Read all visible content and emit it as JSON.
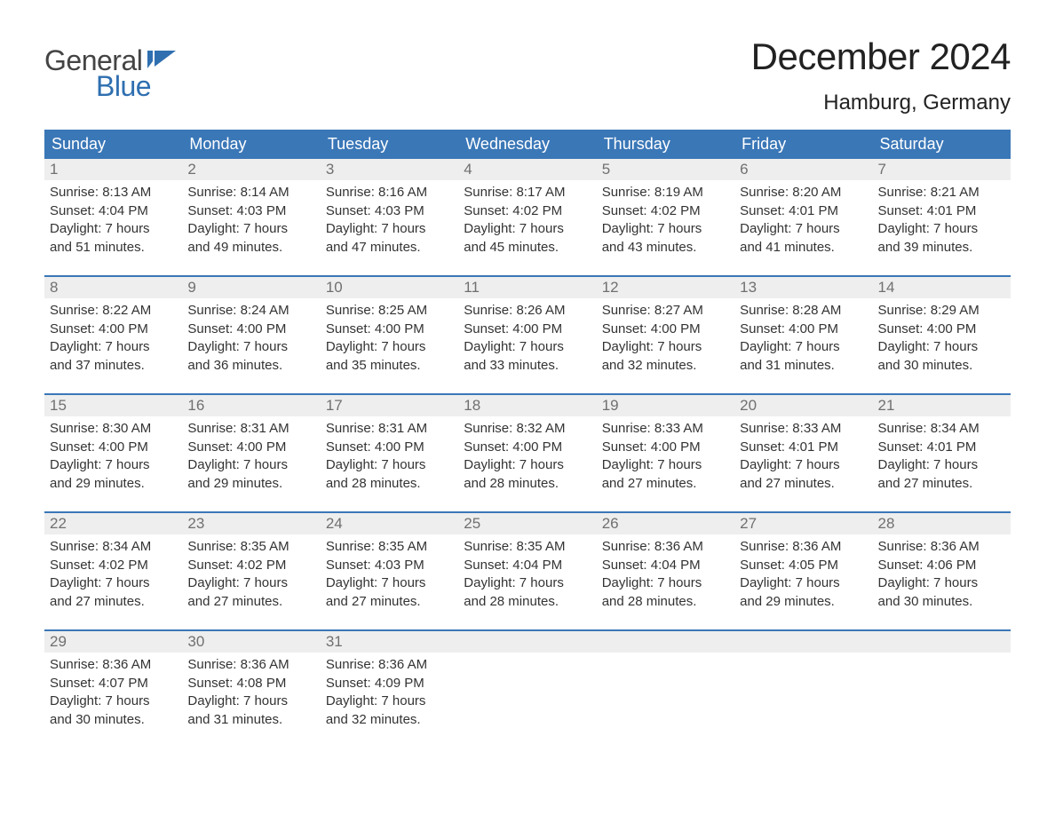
{
  "logo": {
    "word1": "General",
    "word2": "Blue",
    "flag_color": "#2f6fb0",
    "text_color": "#444444"
  },
  "title": "December 2024",
  "location": "Hamburg, Germany",
  "colors": {
    "header_bg": "#3a77b7",
    "header_text": "#ffffff",
    "daynum_bg": "#eeeeee",
    "daynum_text": "#707070",
    "body_text": "#333333",
    "rule": "#3a77b7",
    "page_bg": "#ffffff"
  },
  "fonts": {
    "title_size_pt": 32,
    "location_size_pt": 18,
    "header_size_pt": 14,
    "body_size_pt": 11
  },
  "day_headers": [
    "Sunday",
    "Monday",
    "Tuesday",
    "Wednesday",
    "Thursday",
    "Friday",
    "Saturday"
  ],
  "weeks": [
    [
      {
        "n": "1",
        "sunrise": "8:13 AM",
        "sunset": "4:04 PM",
        "dl_h": 7,
        "dl_m": 51
      },
      {
        "n": "2",
        "sunrise": "8:14 AM",
        "sunset": "4:03 PM",
        "dl_h": 7,
        "dl_m": 49
      },
      {
        "n": "3",
        "sunrise": "8:16 AM",
        "sunset": "4:03 PM",
        "dl_h": 7,
        "dl_m": 47
      },
      {
        "n": "4",
        "sunrise": "8:17 AM",
        "sunset": "4:02 PM",
        "dl_h": 7,
        "dl_m": 45
      },
      {
        "n": "5",
        "sunrise": "8:19 AM",
        "sunset": "4:02 PM",
        "dl_h": 7,
        "dl_m": 43
      },
      {
        "n": "6",
        "sunrise": "8:20 AM",
        "sunset": "4:01 PM",
        "dl_h": 7,
        "dl_m": 41
      },
      {
        "n": "7",
        "sunrise": "8:21 AM",
        "sunset": "4:01 PM",
        "dl_h": 7,
        "dl_m": 39
      }
    ],
    [
      {
        "n": "8",
        "sunrise": "8:22 AM",
        "sunset": "4:00 PM",
        "dl_h": 7,
        "dl_m": 37
      },
      {
        "n": "9",
        "sunrise": "8:24 AM",
        "sunset": "4:00 PM",
        "dl_h": 7,
        "dl_m": 36
      },
      {
        "n": "10",
        "sunrise": "8:25 AM",
        "sunset": "4:00 PM",
        "dl_h": 7,
        "dl_m": 35
      },
      {
        "n": "11",
        "sunrise": "8:26 AM",
        "sunset": "4:00 PM",
        "dl_h": 7,
        "dl_m": 33
      },
      {
        "n": "12",
        "sunrise": "8:27 AM",
        "sunset": "4:00 PM",
        "dl_h": 7,
        "dl_m": 32
      },
      {
        "n": "13",
        "sunrise": "8:28 AM",
        "sunset": "4:00 PM",
        "dl_h": 7,
        "dl_m": 31
      },
      {
        "n": "14",
        "sunrise": "8:29 AM",
        "sunset": "4:00 PM",
        "dl_h": 7,
        "dl_m": 30
      }
    ],
    [
      {
        "n": "15",
        "sunrise": "8:30 AM",
        "sunset": "4:00 PM",
        "dl_h": 7,
        "dl_m": 29
      },
      {
        "n": "16",
        "sunrise": "8:31 AM",
        "sunset": "4:00 PM",
        "dl_h": 7,
        "dl_m": 29
      },
      {
        "n": "17",
        "sunrise": "8:31 AM",
        "sunset": "4:00 PM",
        "dl_h": 7,
        "dl_m": 28
      },
      {
        "n": "18",
        "sunrise": "8:32 AM",
        "sunset": "4:00 PM",
        "dl_h": 7,
        "dl_m": 28
      },
      {
        "n": "19",
        "sunrise": "8:33 AM",
        "sunset": "4:00 PM",
        "dl_h": 7,
        "dl_m": 27
      },
      {
        "n": "20",
        "sunrise": "8:33 AM",
        "sunset": "4:01 PM",
        "dl_h": 7,
        "dl_m": 27
      },
      {
        "n": "21",
        "sunrise": "8:34 AM",
        "sunset": "4:01 PM",
        "dl_h": 7,
        "dl_m": 27
      }
    ],
    [
      {
        "n": "22",
        "sunrise": "8:34 AM",
        "sunset": "4:02 PM",
        "dl_h": 7,
        "dl_m": 27
      },
      {
        "n": "23",
        "sunrise": "8:35 AM",
        "sunset": "4:02 PM",
        "dl_h": 7,
        "dl_m": 27
      },
      {
        "n": "24",
        "sunrise": "8:35 AM",
        "sunset": "4:03 PM",
        "dl_h": 7,
        "dl_m": 27
      },
      {
        "n": "25",
        "sunrise": "8:35 AM",
        "sunset": "4:04 PM",
        "dl_h": 7,
        "dl_m": 28
      },
      {
        "n": "26",
        "sunrise": "8:36 AM",
        "sunset": "4:04 PM",
        "dl_h": 7,
        "dl_m": 28
      },
      {
        "n": "27",
        "sunrise": "8:36 AM",
        "sunset": "4:05 PM",
        "dl_h": 7,
        "dl_m": 29
      },
      {
        "n": "28",
        "sunrise": "8:36 AM",
        "sunset": "4:06 PM",
        "dl_h": 7,
        "dl_m": 30
      }
    ],
    [
      {
        "n": "29",
        "sunrise": "8:36 AM",
        "sunset": "4:07 PM",
        "dl_h": 7,
        "dl_m": 30
      },
      {
        "n": "30",
        "sunrise": "8:36 AM",
        "sunset": "4:08 PM",
        "dl_h": 7,
        "dl_m": 31
      },
      {
        "n": "31",
        "sunrise": "8:36 AM",
        "sunset": "4:09 PM",
        "dl_h": 7,
        "dl_m": 32
      },
      null,
      null,
      null,
      null
    ]
  ]
}
